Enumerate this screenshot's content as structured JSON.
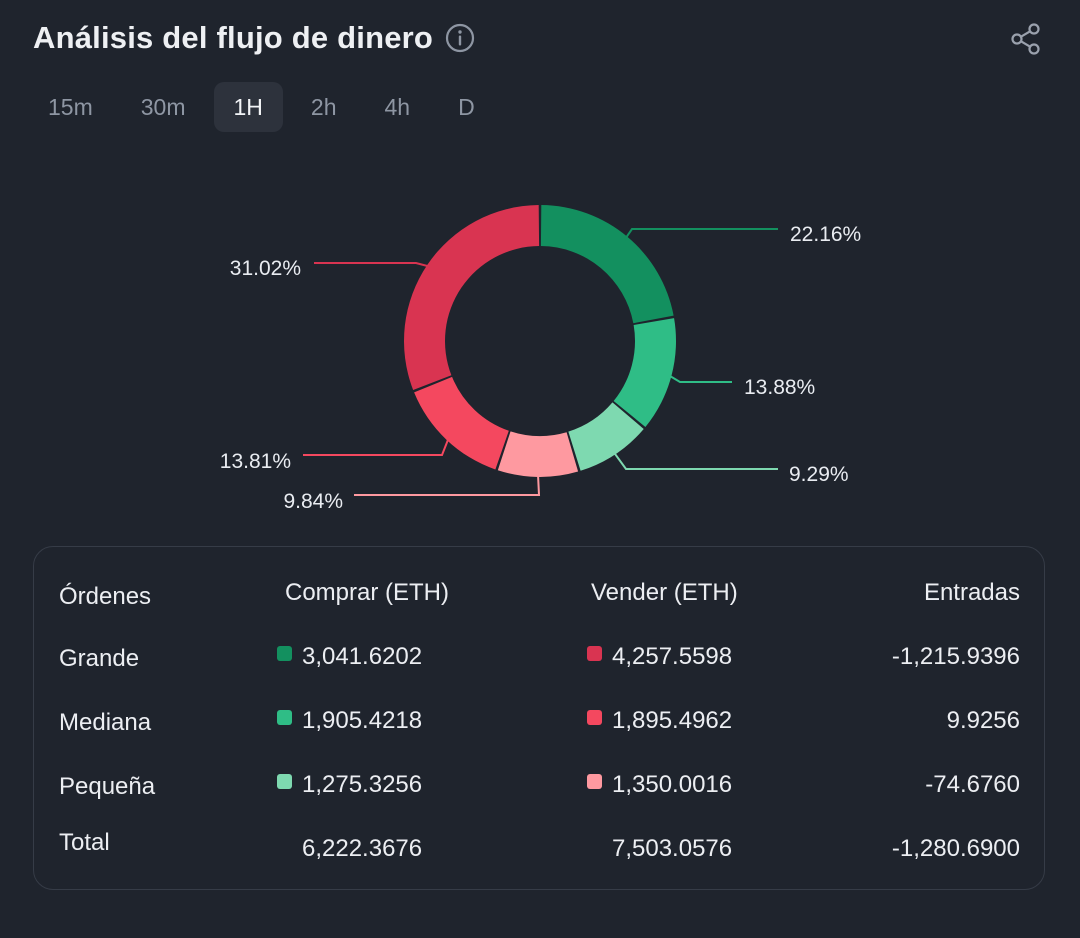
{
  "header": {
    "title": "Análisis del flujo de dinero",
    "info_icon": "info-icon",
    "share_icon": "share-icon"
  },
  "tabs": [
    {
      "label": "15m",
      "active": false
    },
    {
      "label": "30m",
      "active": false
    },
    {
      "label": "1H",
      "active": true
    },
    {
      "label": "2h",
      "active": false
    },
    {
      "label": "4h",
      "active": false
    },
    {
      "label": "D",
      "active": false
    }
  ],
  "chart_data": {
    "type": "pie",
    "slices": [
      {
        "name": "Grande compra",
        "value": 22.16,
        "label": "22.16%",
        "color": "#13905f"
      },
      {
        "name": "Mediana compra",
        "value": 13.88,
        "label": "13.88%",
        "color": "#2fbd86"
      },
      {
        "name": "Pequeña compra",
        "value": 9.29,
        "label": "9.29%",
        "color": "#7ed9b0"
      },
      {
        "name": "Pequeña venta",
        "value": 9.84,
        "label": "9.84%",
        "color": "#fe99a0"
      },
      {
        "name": "Mediana venta",
        "value": 13.81,
        "label": "13.81%",
        "color": "#f4485f"
      },
      {
        "name": "Grande venta",
        "value": 31.02,
        "label": "31.02%",
        "color": "#d93451"
      }
    ]
  },
  "table": {
    "headers": {
      "orders": "Órdenes",
      "buy": "Comprar (ETH)",
      "sell": "Vender (ETH)",
      "inflow": "Entradas"
    },
    "rows": [
      {
        "label": "Grande",
        "buy": "3,041.6202",
        "buy_color": "#13905f",
        "sell": "4,257.5598",
        "sell_color": "#d93451",
        "inflow": "-1,215.9396"
      },
      {
        "label": "Mediana",
        "buy": "1,905.4218",
        "buy_color": "#2fbd86",
        "sell": "1,895.4962",
        "sell_color": "#f4485f",
        "inflow": "9.9256"
      },
      {
        "label": "Pequeña",
        "buy": "1,275.3256",
        "buy_color": "#7ed9b0",
        "sell": "1,350.0016",
        "sell_color": "#fe99a0",
        "inflow": "-74.6760"
      }
    ],
    "total": {
      "label": "Total",
      "buy": "6,222.3676",
      "sell": "7,503.0576",
      "inflow": "-1,280.6900"
    }
  }
}
